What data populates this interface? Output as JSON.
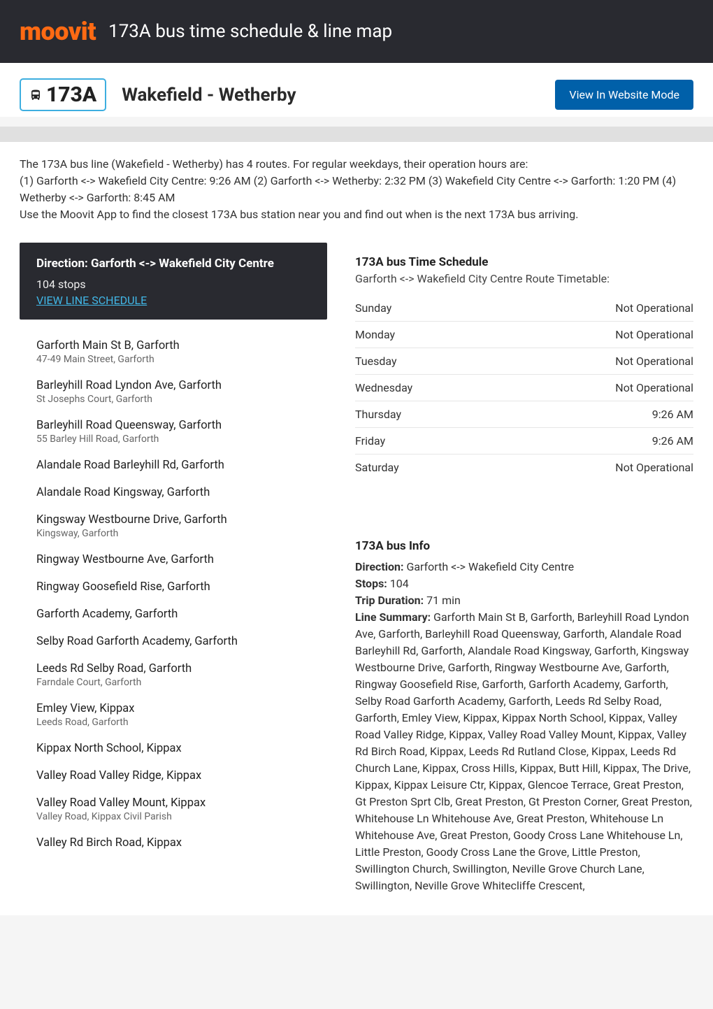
{
  "header": {
    "logo": "moovit",
    "title": "173A bus time schedule & line map"
  },
  "titleRow": {
    "lineNumber": "173A",
    "routeName": "Wakefield - Wetherby",
    "websiteBtn": "View In Website Mode"
  },
  "intro": "The 173A bus line (Wakefield - Wetherby) has 4 routes. For regular weekdays, their operation hours are:\n(1) Garforth <-> Wakefield City Centre: 9:26 AM (2) Garforth <-> Wetherby: 2:32 PM (3) Wakefield City Centre <-> Garforth: 1:20 PM (4) Wetherby <-> Garforth: 8:45 AM\nUse the Moovit App to find the closest 173A bus station near you and find out when is the next 173A bus arriving.",
  "direction": {
    "title": "Direction: Garforth <-> Wakefield City Centre",
    "stopsCount": "104 stops",
    "viewLink": "VIEW LINE SCHEDULE"
  },
  "stops": [
    {
      "name": "Garforth Main St B, Garforth",
      "addr": "47-49 Main Street, Garforth"
    },
    {
      "name": "Barleyhill Road Lyndon Ave, Garforth",
      "addr": "St Josephs Court, Garforth"
    },
    {
      "name": "Barleyhill Road Queensway, Garforth",
      "addr": "55 Barley Hill Road, Garforth"
    },
    {
      "name": "Alandale Road Barleyhill Rd, Garforth",
      "addr": ""
    },
    {
      "name": "Alandale Road Kingsway, Garforth",
      "addr": ""
    },
    {
      "name": "Kingsway Westbourne Drive, Garforth",
      "addr": "Kingsway, Garforth"
    },
    {
      "name": "Ringway Westbourne Ave, Garforth",
      "addr": ""
    },
    {
      "name": "Ringway Goosefield Rise, Garforth",
      "addr": ""
    },
    {
      "name": "Garforth Academy, Garforth",
      "addr": ""
    },
    {
      "name": "Selby Road Garforth Academy, Garforth",
      "addr": ""
    },
    {
      "name": "Leeds Rd Selby Road, Garforth",
      "addr": "Farndale Court, Garforth"
    },
    {
      "name": "Emley View, Kippax",
      "addr": "Leeds Road, Garforth"
    },
    {
      "name": "Kippax North School, Kippax",
      "addr": ""
    },
    {
      "name": "Valley Road Valley Ridge, Kippax",
      "addr": ""
    },
    {
      "name": "Valley Road Valley Mount, Kippax",
      "addr": "Valley Road, Kippax Civil Parish"
    },
    {
      "name": "Valley Rd Birch Road, Kippax",
      "addr": ""
    }
  ],
  "schedule": {
    "title": "173A bus Time Schedule",
    "subtitle": "Garforth <-> Wakefield City Centre Route Timetable:",
    "rows": [
      {
        "day": "Sunday",
        "time": "Not Operational"
      },
      {
        "day": "Monday",
        "time": "Not Operational"
      },
      {
        "day": "Tuesday",
        "time": "Not Operational"
      },
      {
        "day": "Wednesday",
        "time": "Not Operational"
      },
      {
        "day": "Thursday",
        "time": "9:26 AM"
      },
      {
        "day": "Friday",
        "time": "9:26 AM"
      },
      {
        "day": "Saturday",
        "time": "Not Operational"
      }
    ]
  },
  "info": {
    "title": "173A bus Info",
    "direction_label": "Direction:",
    "direction_val": " Garforth <-> Wakefield City Centre",
    "stops_label": "Stops:",
    "stops_val": " 104",
    "duration_label": "Trip Duration:",
    "duration_val": " 71 min",
    "summary_label": "Line Summary:",
    "summary_val": " Garforth Main St B, Garforth, Barleyhill Road Lyndon Ave, Garforth, Barleyhill Road Queensway, Garforth, Alandale Road Barleyhill Rd, Garforth, Alandale Road Kingsway, Garforth, Kingsway Westbourne Drive, Garforth, Ringway Westbourne Ave, Garforth, Ringway Goosefield Rise, Garforth, Garforth Academy, Garforth, Selby Road Garforth Academy, Garforth, Leeds Rd Selby Road, Garforth, Emley View, Kippax, Kippax North School, Kippax, Valley Road Valley Ridge, Kippax, Valley Road Valley Mount, Kippax, Valley Rd Birch Road, Kippax, Leeds Rd Rutland Close, Kippax, Leeds Rd Church Lane, Kippax, Cross Hills, Kippax, Butt Hill, Kippax, The Drive, Kippax, Kippax Leisure Ctr, Kippax, Glencoe Terrace, Great Preston, Gt Preston Sprt Clb, Great Preston, Gt Preston Corner, Great Preston, Whitehouse Ln Whitehouse Ave, Great Preston, Whitehouse Ln Whitehouse Ave, Great Preston, Goody Cross Lane Whitehouse Ln, Little Preston, Goody Cross Lane the Grove, Little Preston, Swillington Church, Swillington, Neville Grove Church Lane, Swillington, Neville Grove Whitecliffe Crescent,"
  },
  "colors": {
    "headerBg": "#292a30",
    "logo": "#ff6a13",
    "badgeBorder": "#3daee0",
    "btn": "#0060a9",
    "link": "#41b6e6"
  }
}
